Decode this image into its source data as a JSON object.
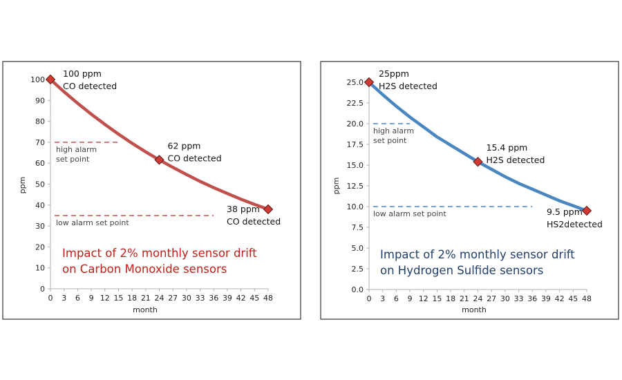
{
  "colors": {
    "co": "#c0504d",
    "h2s": "#4a86c0",
    "marker": "#d13a34",
    "co_title": "#c0201a",
    "h2s_title": "#23406a"
  },
  "chart_data": [
    {
      "type": "line",
      "title_lines": [
        "Impact of 2% monthly sensor drift",
        "on Carbon Monoxide sensors"
      ],
      "xlabel": "month",
      "ylabel": "ppm",
      "xlim": [
        0,
        48
      ],
      "ylim": [
        0,
        100
      ],
      "xticks": [
        "0",
        "3",
        "6",
        "9",
        "12",
        "15",
        "18",
        "21",
        "24",
        "27",
        "30",
        "33",
        "36",
        "39",
        "42",
        "45",
        "48"
      ],
      "yticks": [
        "0",
        "10",
        "20",
        "30",
        "40",
        "50",
        "60",
        "70",
        "80",
        "90",
        "100"
      ],
      "curve": {
        "x": [
          0,
          3,
          6,
          9,
          12,
          15,
          18,
          21,
          24,
          27,
          30,
          33,
          36,
          39,
          42,
          45,
          48
        ],
        "y": [
          100,
          94.1,
          88.6,
          83.4,
          78.5,
          73.9,
          69.5,
          65.4,
          61.6,
          58.0,
          54.6,
          51.3,
          48.3,
          45.5,
          42.8,
          40.3,
          38.0
        ]
      },
      "points": [
        {
          "x": 0,
          "y": 100,
          "label": [
            "100 ppm",
            "CO detected"
          ]
        },
        {
          "x": 24,
          "y": 61.6,
          "label": [
            "62 ppm",
            "CO detected"
          ]
        },
        {
          "x": 48,
          "y": 38,
          "label": [
            "38 ppm",
            "CO detected"
          ]
        }
      ],
      "thresholds": [
        {
          "y": 70,
          "x_end": 15,
          "label": [
            "high alarm",
            "set point"
          ]
        },
        {
          "y": 35,
          "x_end": 36,
          "label": [
            "low alarm set point"
          ]
        }
      ]
    },
    {
      "type": "line",
      "title_lines": [
        "Impact of 2% monthly sensor drift",
        "on Hydrogen Sulfide sensors"
      ],
      "xlabel": "month",
      "ylabel": "ppm",
      "xlim": [
        0,
        48
      ],
      "ylim": [
        0,
        25
      ],
      "xticks": [
        "0",
        "3",
        "6",
        "9",
        "12",
        "15",
        "18",
        "21",
        "24",
        "27",
        "30",
        "33",
        "36",
        "39",
        "42",
        "45",
        "48"
      ],
      "yticks": [
        "0.0",
        "2.5",
        "5.0",
        "7.5",
        "10.0",
        "12.5",
        "15.0",
        "17.5",
        "20.0",
        "22.5",
        "25.0"
      ],
      "curve": {
        "x": [
          0,
          3,
          6,
          9,
          12,
          15,
          18,
          21,
          24,
          27,
          30,
          33,
          36,
          39,
          42,
          45,
          48
        ],
        "y": [
          25,
          23.5,
          22.1,
          20.8,
          19.6,
          18.4,
          17.4,
          16.4,
          15.4,
          14.5,
          13.6,
          12.8,
          12.1,
          11.4,
          10.7,
          10.1,
          9.5
        ]
      },
      "points": [
        {
          "x": 0,
          "y": 25,
          "label": [
            "25ppm",
            "H2S detected"
          ]
        },
        {
          "x": 24,
          "y": 15.4,
          "label": [
            "15.4 ppm",
            "H2S detected"
          ]
        },
        {
          "x": 48,
          "y": 9.5,
          "label": [
            "9.5 ppm",
            "HS2detected"
          ]
        }
      ],
      "thresholds": [
        {
          "y": 20,
          "x_end": 9,
          "label": [
            "high alarm",
            "set point"
          ]
        },
        {
          "y": 10,
          "x_end": 36,
          "label": [
            "low alarm set point"
          ]
        }
      ]
    }
  ]
}
